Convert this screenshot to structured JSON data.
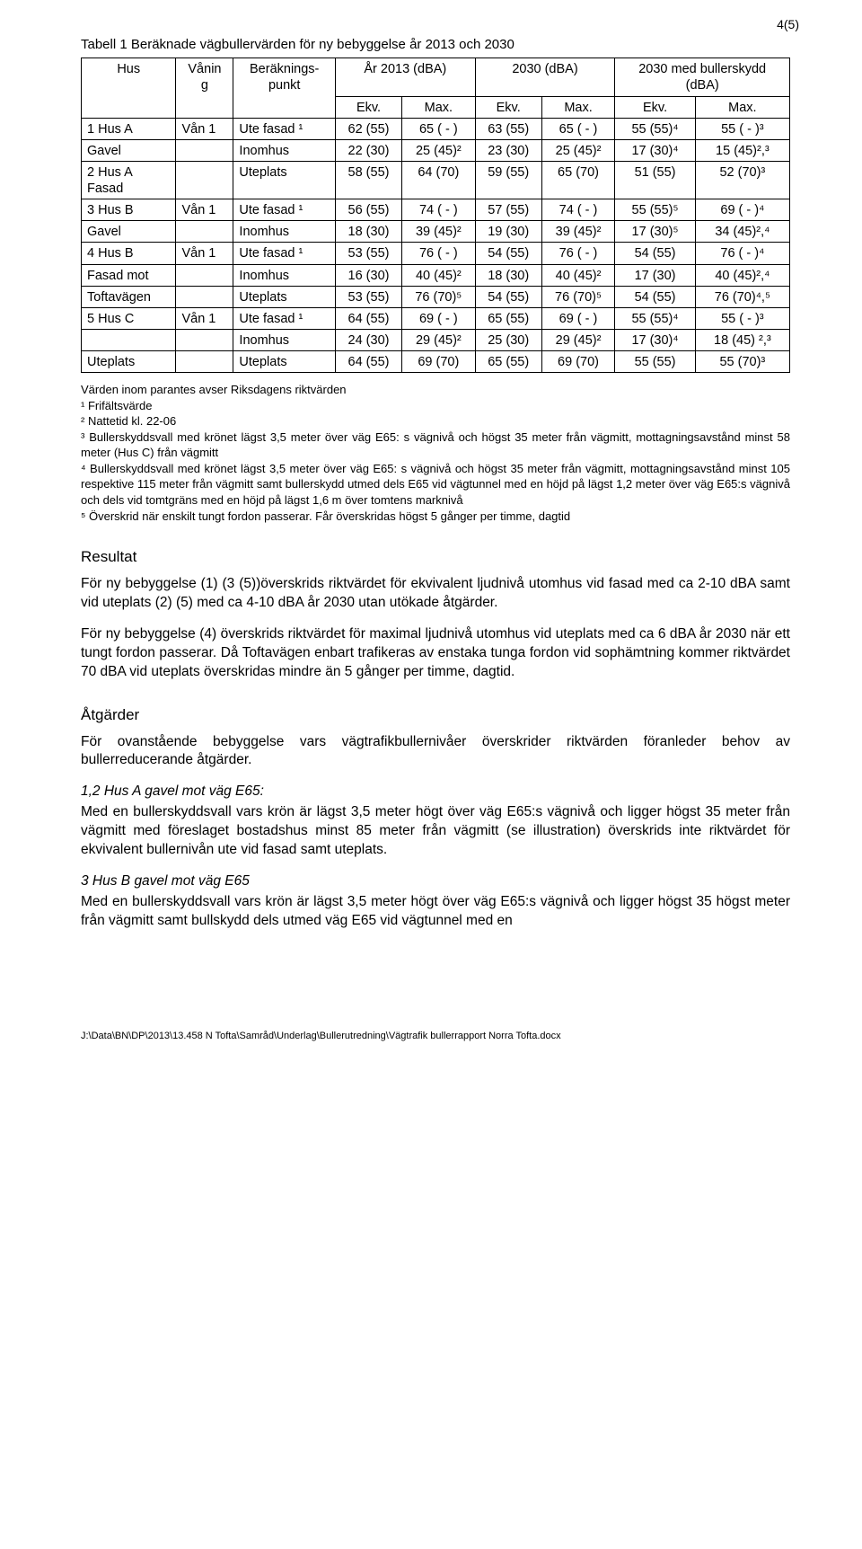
{
  "pageNumber": "4(5)",
  "tableCaption": "Tabell 1 Beräknade vägbullervärden för ny bebyggelse år 2013 och 2030",
  "head": {
    "c1": "Hus",
    "c2": "Vånin\ng",
    "c3": "Beräknings-\npunkt",
    "g1": "År 2013 (dBA)",
    "g2": "2030 (dBA)",
    "g3": "2030 med bullerskydd\n(dBA)",
    "ekv": "Ekv.",
    "max": "Max."
  },
  "rows": [
    {
      "label": "1 Hus A",
      "van": "Vån 1",
      "pt": "Ute fasad ¹",
      "v": [
        "62 (55)",
        "65 ( - )",
        "63 (55)",
        "65 ( - )",
        "55 (55)⁴",
        "55 ( - )³"
      ]
    },
    {
      "label": "Gavel",
      "van": "",
      "pt": "Inomhus",
      "v": [
        "22 (30)",
        "25 (45)²",
        "23 (30)",
        "25 (45)²",
        "17 (30)⁴",
        "15 (45)²,³"
      ]
    },
    {
      "label": "2 Hus A\nFasad",
      "van": "",
      "pt": "Uteplats",
      "v": [
        "58 (55)",
        "64 (70)",
        "59 (55)",
        "65 (70)",
        "51 (55)",
        "52 (70)³"
      ]
    },
    {
      "label": "3 Hus B",
      "van": "Vån 1",
      "pt": "Ute fasad ¹",
      "v": [
        "56 (55)",
        "74 ( - )",
        "57 (55)",
        "74 ( - )",
        "55 (55)⁵",
        "69 ( - )⁴"
      ]
    },
    {
      "label": "Gavel",
      "van": "",
      "pt": "Inomhus",
      "v": [
        "18 (30)",
        "39 (45)²",
        "19 (30)",
        "39 (45)²",
        "17 (30)⁵",
        "34 (45)²,⁴"
      ]
    },
    {
      "label": "4 Hus B",
      "van": "Vån 1",
      "pt": "Ute fasad ¹",
      "v": [
        "53 (55)",
        "76 ( - )",
        "54 (55)",
        "76 ( - )",
        "54 (55)",
        "76 ( - )⁴"
      ]
    },
    {
      "label": "Fasad mot",
      "van": "",
      "pt": "Inomhus",
      "v": [
        "16 (30)",
        "40 (45)²",
        "18 (30)",
        "40 (45)²",
        "17 (30)",
        "40 (45)²,⁴"
      ]
    },
    {
      "label": "Toftavägen",
      "van": "",
      "pt": "Uteplats",
      "v": [
        "53 (55)",
        "76 (70)⁵",
        "54 (55)",
        "76 (70)⁵",
        "54 (55)",
        "76 (70)⁴,⁵"
      ]
    },
    {
      "label": "5 Hus C",
      "van": "Vån 1",
      "pt": "Ute fasad ¹",
      "v": [
        "64 (55)",
        "69 ( - )",
        "65 (55)",
        "69 ( - )",
        "55 (55)⁴",
        "55 ( - )³"
      ]
    },
    {
      "label": "",
      "van": "",
      "pt": "Inomhus",
      "v": [
        "24 (30)",
        "29 (45)²",
        "25 (30)",
        "29 (45)²",
        "17 (30)⁴",
        "18 (45) ²,³"
      ]
    },
    {
      "label": "Uteplats",
      "van": "",
      "pt": "Uteplats",
      "v": [
        "64 (55)",
        "69 (70)",
        "65 (55)",
        "69 (70)",
        "55 (55)",
        "55 (70)³"
      ]
    }
  ],
  "notesTitle": "Värden inom parantes avser Riksdagens riktvärden",
  "notes": [
    "¹ Frifältsvärde",
    "² Nattetid kl. 22-06",
    "³ Bullerskyddsvall med krönet lägst 3,5 meter över väg E65: s vägnivå och högst 35 meter från vägmitt, mottagningsavstånd minst 58 meter (Hus C) från vägmitt",
    "⁴ Bullerskyddsvall med krönet lägst 3,5 meter över väg E65: s vägnivå och högst 35 meter från vägmitt, mottagningsavstånd minst 105 respektive 115 meter från vägmitt samt bullerskydd utmed dels E65 vid vägtunnel med en höjd på lägst 1,2 meter över väg E65:s vägnivå och dels vid tomtgräns med en höjd på lägst 1,6 m över tomtens marknivå",
    "⁵ Överskrid när enskilt tungt fordon passerar. Får överskridas högst 5 gånger per timme, dagtid"
  ],
  "sec1": {
    "title": "Resultat",
    "p1": "För ny bebyggelse (1) (3 (5))överskrids riktvärdet för ekvivalent ljudnivå utomhus vid fasad med ca 2-10 dBA samt vid uteplats (2) (5) med ca 4-10 dBA år 2030 utan utökade åtgärder.",
    "p2": "För ny bebyggelse (4) överskrids riktvärdet för maximal ljudnivå utomhus vid uteplats med ca 6 dBA år 2030 när ett tungt fordon passerar. Då Toftavägen enbart trafikeras av enstaka tunga fordon vid sophämtning kommer riktvärdet 70 dBA vid uteplats överskridas mindre än 5 gånger per timme, dagtid."
  },
  "sec2": {
    "title": "Åtgärder",
    "p1": "För ovanstående bebyggelse vars vägtrafikbullernivåer överskrider riktvärden föranleder behov av bullerreducerande åtgärder.",
    "h1": "1,2 Hus A gavel mot väg E65:",
    "pA": "Med en bullerskyddsvall vars krön är lägst 3,5 meter högt över väg E65:s vägnivå och ligger högst 35 meter från vägmitt med föreslaget bostadshus minst 85 meter från vägmitt (se illustration) överskrids inte riktvärdet för ekvivalent bullernivån ute vid fasad samt uteplats.",
    "h2": "3 Hus B gavel mot väg E65",
    "pB": "Med en bullerskyddsvall vars krön är lägst 3,5 meter högt över väg E65:s vägnivå och ligger högst 35 högst meter från vägmitt samt bullskydd dels utmed väg E65 vid vägtunnel med en"
  },
  "footerPath": "J:\\Data\\BN\\DP\\2013\\13.458 N Tofta\\Samråd\\Underlag\\Bullerutredning\\Vägtrafik bullerrapport Norra Tofta.docx"
}
